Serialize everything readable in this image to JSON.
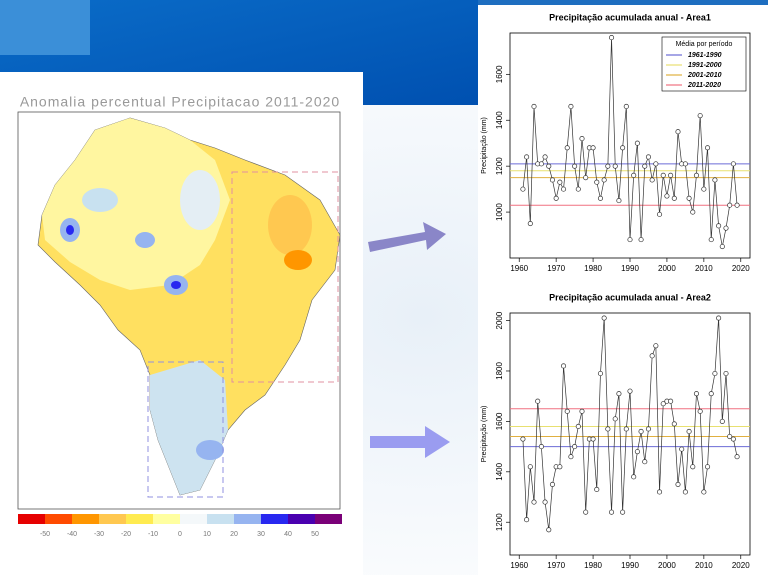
{
  "map": {
    "title": "Anomalia percentual Precipitacao 2011-2020",
    "colorbar": {
      "colors": [
        "#e60000",
        "#ff4b00",
        "#ff9600",
        "#ffc850",
        "#ffeb50",
        "#ffffa0",
        "#f4f8fa",
        "#c8e1f0",
        "#96b4f0",
        "#2828f0",
        "#4a00b0",
        "#7a0078"
      ],
      "ticks": [
        -50,
        -40,
        -30,
        -20,
        -10,
        0,
        10,
        20,
        30,
        40,
        50
      ]
    }
  },
  "chart_data": [
    {
      "type": "line",
      "title": "Precipitação acumulada anual - Area1",
      "y_label": "Precipitação (mm)",
      "x": [
        1961,
        1962,
        1963,
        1964,
        1965,
        1966,
        1967,
        1968,
        1969,
        1970,
        1971,
        1972,
        1973,
        1974,
        1975,
        1976,
        1977,
        1978,
        1979,
        1980,
        1981,
        1982,
        1983,
        1984,
        1985,
        1986,
        1987,
        1988,
        1989,
        1990,
        1991,
        1992,
        1993,
        1994,
        1995,
        1996,
        1997,
        1998,
        1999,
        2000,
        2001,
        2002,
        2003,
        2004,
        2005,
        2006,
        2007,
        2008,
        2009,
        2010,
        2011,
        2012,
        2013,
        2014,
        2015,
        2016,
        2017,
        2018,
        2019
      ],
      "series": [
        {
          "color": "#333333",
          "values": [
            1100,
            1240,
            950,
            1460,
            1210,
            1210,
            1240,
            1200,
            1140,
            1060,
            1130,
            1100,
            1280,
            1460,
            1200,
            1100,
            1320,
            1150,
            1280,
            1280,
            1130,
            1060,
            1140,
            1200,
            1760,
            1200,
            1050,
            1280,
            1460,
            880,
            1160,
            1300,
            880,
            1200,
            1240,
            1140,
            1210,
            990,
            1160,
            1070,
            1160,
            1060,
            1350,
            1210,
            1210,
            1060,
            1000,
            1160,
            1420,
            1100,
            1280,
            880,
            1140,
            940,
            850,
            930,
            1030,
            1210,
            1030
          ]
        }
      ],
      "reference_lines": [
        {
          "name": "1961-1990",
          "color": "#6b6bd6",
          "value": 1210
        },
        {
          "name": "1991-2000",
          "color": "#e8e070",
          "value": 1180
        },
        {
          "name": "2001-2010",
          "color": "#e0b040",
          "value": 1150
        },
        {
          "name": "2011-2020",
          "color": "#f07080",
          "value": 1030
        }
      ],
      "legend_title": "Média por período",
      "legend": "top-right",
      "xlim": [
        1957.5,
        2022.5
      ],
      "xticks": [
        1960,
        1970,
        1980,
        1990,
        2000,
        2010,
        2020
      ],
      "ylim": [
        800,
        1780
      ],
      "yticks": [
        1000,
        1200,
        1400,
        1600
      ]
    },
    {
      "type": "line",
      "title": "Precipitação acumulada anual - Area2",
      "y_label": "Precipitação (mm)",
      "x": [
        1961,
        1962,
        1963,
        1964,
        1965,
        1966,
        1967,
        1968,
        1969,
        1970,
        1971,
        1972,
        1973,
        1974,
        1975,
        1976,
        1977,
        1978,
        1979,
        1980,
        1981,
        1982,
        1983,
        1984,
        1985,
        1986,
        1987,
        1988,
        1989,
        1990,
        1991,
        1992,
        1993,
        1994,
        1995,
        1996,
        1997,
        1998,
        1999,
        2000,
        2001,
        2002,
        2003,
        2004,
        2005,
        2006,
        2007,
        2008,
        2009,
        2010,
        2011,
        2012,
        2013,
        2014,
        2015,
        2016,
        2017,
        2018,
        2019
      ],
      "series": [
        {
          "color": "#333333",
          "values": [
            1530,
            1210,
            1420,
            1280,
            1680,
            1500,
            1280,
            1170,
            1350,
            1420,
            1420,
            1820,
            1640,
            1460,
            1500,
            1580,
            1640,
            1240,
            1530,
            1530,
            1330,
            1790,
            2010,
            1570,
            1240,
            1610,
            1710,
            1240,
            1570,
            1720,
            1380,
            1480,
            1560,
            1440,
            1570,
            1860,
            1900,
            1320,
            1670,
            1680,
            1680,
            1590,
            1350,
            1490,
            1320,
            1560,
            1420,
            1710,
            1640,
            1320,
            1420,
            1710,
            1790,
            2010,
            1600,
            1790,
            1540,
            1530,
            1460
          ]
        }
      ],
      "reference_lines": [
        {
          "color": "#6b6bd6",
          "value": 1500
        },
        {
          "color": "#e8e070",
          "value": 1580
        },
        {
          "color": "#e0b040",
          "value": 1540
        },
        {
          "color": "#f07080",
          "value": 1650
        }
      ],
      "xlim": [
        1957.5,
        2022.5
      ],
      "xticks": [
        1960,
        1970,
        1980,
        1990,
        2000,
        2010,
        2020
      ],
      "ylim": [
        1070,
        2030
      ],
      "yticks": [
        1200,
        1400,
        1600,
        1800,
        2000
      ]
    }
  ]
}
